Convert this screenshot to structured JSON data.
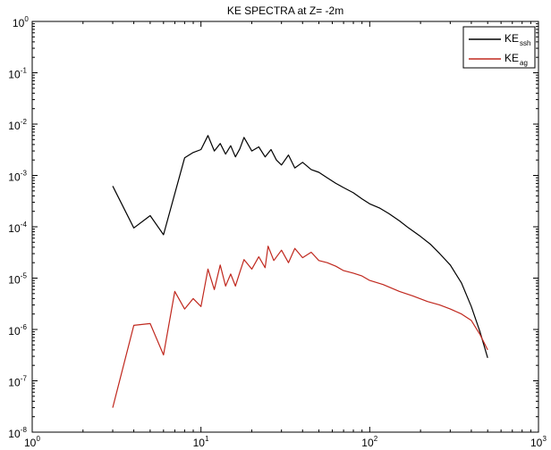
{
  "chart_data": {
    "type": "line",
    "title": "KE SPECTRA at Z= -2m",
    "xscale": "log",
    "yscale": "log",
    "xlim": [
      1,
      1000
    ],
    "ylim": [
      1e-08,
      1
    ],
    "x_ticks": [
      {
        "base": "10",
        "exp": "0"
      },
      {
        "base": "10",
        "exp": "1"
      },
      {
        "base": "10",
        "exp": "2"
      },
      {
        "base": "10",
        "exp": "3"
      }
    ],
    "y_ticks": [
      {
        "base": "10",
        "exp": "0"
      },
      {
        "base": "10",
        "exp": "-1"
      },
      {
        "base": "10",
        "exp": "-2"
      },
      {
        "base": "10",
        "exp": "-3"
      },
      {
        "base": "10",
        "exp": "-4"
      },
      {
        "base": "10",
        "exp": "-5"
      },
      {
        "base": "10",
        "exp": "-6"
      },
      {
        "base": "10",
        "exp": "-7"
      },
      {
        "base": "10",
        "exp": "-8"
      }
    ],
    "legend_position": "top-right",
    "grid": false,
    "series": [
      {
        "name": "KE",
        "subscript": "ssh",
        "color": "#000000",
        "points": [
          [
            3,
            0.00062
          ],
          [
            4,
            9.5e-05
          ],
          [
            5,
            0.000165
          ],
          [
            6,
            7e-05
          ],
          [
            8,
            0.0022
          ],
          [
            9,
            0.0028
          ],
          [
            10,
            0.0032
          ],
          [
            11,
            0.006
          ],
          [
            12,
            0.003
          ],
          [
            13,
            0.0042
          ],
          [
            14,
            0.0026
          ],
          [
            15,
            0.0038
          ],
          [
            16,
            0.0023
          ],
          [
            17,
            0.0033
          ],
          [
            18,
            0.0055
          ],
          [
            20,
            0.003
          ],
          [
            22,
            0.0036
          ],
          [
            24,
            0.0023
          ],
          [
            26,
            0.0032
          ],
          [
            28,
            0.002
          ],
          [
            30,
            0.0016
          ],
          [
            33,
            0.0025
          ],
          [
            36,
            0.0014
          ],
          [
            40,
            0.0018
          ],
          [
            45,
            0.0013
          ],
          [
            50,
            0.00115
          ],
          [
            56,
            0.0009
          ],
          [
            63,
            0.0007
          ],
          [
            70,
            0.00058
          ],
          [
            80,
            0.00046
          ],
          [
            90,
            0.00035
          ],
          [
            100,
            0.00028
          ],
          [
            115,
            0.00023
          ],
          [
            130,
            0.00018
          ],
          [
            150,
            0.00013
          ],
          [
            170,
            9.5e-05
          ],
          [
            200,
            6.5e-05
          ],
          [
            230,
            4.5e-05
          ],
          [
            260,
            3e-05
          ],
          [
            300,
            1.8e-05
          ],
          [
            350,
            8e-06
          ],
          [
            400,
            2.8e-06
          ],
          [
            450,
            9e-07
          ],
          [
            500,
            2.8e-07
          ]
        ]
      },
      {
        "name": "KE",
        "subscript": "ag",
        "color": "#c0281e",
        "points": [
          [
            3,
            3e-08
          ],
          [
            4,
            1.2e-06
          ],
          [
            5,
            1.3e-06
          ],
          [
            6,
            3.2e-07
          ],
          [
            7,
            5.5e-06
          ],
          [
            8,
            2.5e-06
          ],
          [
            9,
            4e-06
          ],
          [
            10,
            2.8e-06
          ],
          [
            11,
            1.5e-05
          ],
          [
            12,
            6e-06
          ],
          [
            13,
            1.8e-05
          ],
          [
            14,
            7e-06
          ],
          [
            15,
            1.2e-05
          ],
          [
            16,
            7e-06
          ],
          [
            17,
            1.3e-05
          ],
          [
            18,
            2.3e-05
          ],
          [
            20,
            1.5e-05
          ],
          [
            22,
            2.6e-05
          ],
          [
            24,
            1.6e-05
          ],
          [
            25,
            4.2e-05
          ],
          [
            27,
            2.2e-05
          ],
          [
            30,
            3.5e-05
          ],
          [
            33,
            2e-05
          ],
          [
            36,
            3.8e-05
          ],
          [
            40,
            2.5e-05
          ],
          [
            45,
            3.2e-05
          ],
          [
            50,
            2.2e-05
          ],
          [
            56,
            2e-05
          ],
          [
            63,
            1.7e-05
          ],
          [
            70,
            1.4e-05
          ],
          [
            80,
            1.25e-05
          ],
          [
            90,
            1.1e-05
          ],
          [
            100,
            9e-06
          ],
          [
            120,
            7.5e-06
          ],
          [
            150,
            5.5e-06
          ],
          [
            180,
            4.5e-06
          ],
          [
            220,
            3.5e-06
          ],
          [
            260,
            3e-06
          ],
          [
            300,
            2.5e-06
          ],
          [
            350,
            2e-06
          ],
          [
            400,
            1.5e-06
          ],
          [
            450,
            8e-07
          ],
          [
            500,
            4e-07
          ]
        ]
      }
    ]
  }
}
